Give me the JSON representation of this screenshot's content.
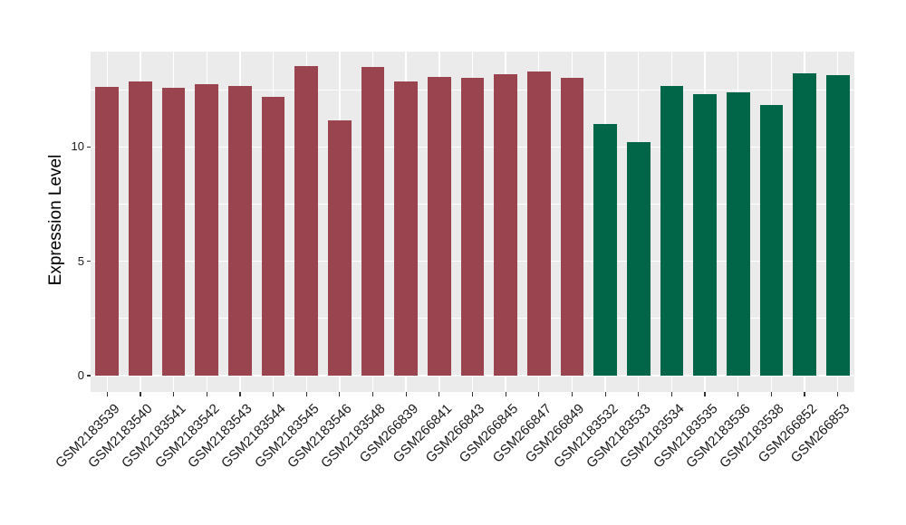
{
  "chart_data": {
    "type": "bar",
    "ylabel": "Expression Level",
    "xlabel": "",
    "ylim": [
      -0.675,
      14.18
    ],
    "y_major_ticks": [
      0,
      5,
      10
    ],
    "y_minor_ticks": [
      2.5,
      7.5,
      12.5
    ],
    "grid": true,
    "legend": "none",
    "categories": [
      "GSM2183539",
      "GSM2183540",
      "GSM2183541",
      "GSM2183542",
      "GSM2183543",
      "GSM2183544",
      "GSM2183545",
      "GSM2183546",
      "GSM2183548",
      "GSM266839",
      "GSM266841",
      "GSM266843",
      "GSM266845",
      "GSM266847",
      "GSM266849",
      "GSM2183532",
      "GSM2183533",
      "GSM2183534",
      "GSM2183535",
      "GSM2183536",
      "GSM2183538",
      "GSM266852",
      "GSM266853"
    ],
    "values": [
      12.6,
      12.87,
      12.56,
      12.72,
      12.64,
      12.2,
      13.51,
      11.17,
      13.47,
      12.84,
      13.07,
      13.03,
      13.19,
      13.31,
      13.03,
      10.99,
      10.21,
      12.67,
      12.31,
      12.4,
      11.82,
      13.2,
      13.14
    ],
    "groups": [
      "group1",
      "group1",
      "group1",
      "group1",
      "group1",
      "group1",
      "group1",
      "group1",
      "group1",
      "group1",
      "group1",
      "group1",
      "group1",
      "group1",
      "group1",
      "group2",
      "group2",
      "group2",
      "group2",
      "group2",
      "group2",
      "group2",
      "group2"
    ],
    "group_colors": {
      "group1": "#9A4450",
      "group2": "#006647"
    },
    "style": {
      "panel_bg": "#EBEBEB",
      "grid_color": "#FFFFFF",
      "tick_color": "#333333",
      "label_color": "#1A1A1A"
    }
  }
}
